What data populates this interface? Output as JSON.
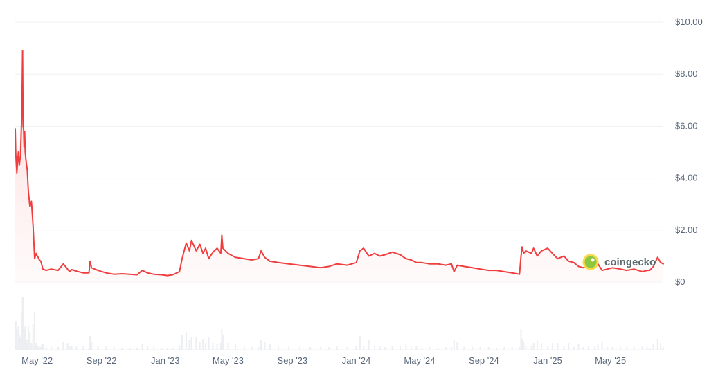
{
  "chart_data": {
    "type": "area",
    "title": "",
    "xlabel": "",
    "ylabel": "",
    "y_ticks": [
      "$10.00",
      "$8.00",
      "$6.00",
      "$4.00",
      "$2.00",
      "$0"
    ],
    "y_tick_values": [
      10,
      8,
      6,
      4,
      2,
      0
    ],
    "ylim": [
      0,
      10
    ],
    "x_ticks": [
      "May '22",
      "Sep '22",
      "Jan '23",
      "May '23",
      "Sep '23",
      "Jan '24",
      "May '24",
      "Sep '24",
      "Jan '25",
      "May '25"
    ],
    "x_tick_dates": [
      "2022-05-01",
      "2022-09-01",
      "2023-01-01",
      "2023-05-01",
      "2023-09-01",
      "2024-01-01",
      "2024-05-01",
      "2024-09-01",
      "2025-01-01",
      "2025-05-01"
    ],
    "xlim": [
      "2022-03-20",
      "2025-08-10"
    ],
    "grid": "horizontal",
    "legend": "none",
    "line_color": "#f03e3e",
    "fill_color": "#fde4e4",
    "grid_color": "#eef0f3",
    "volume_color": "#eceef1",
    "watermark": "coingecko",
    "series": [
      {
        "dates": [
          "2022-03-20",
          "2022-03-21",
          "2022-03-23",
          "2022-03-26",
          "2022-03-28",
          "2022-03-30",
          "2022-04-01",
          "2022-04-02",
          "2022-04-03",
          "2022-04-04",
          "2022-04-05",
          "2022-04-06",
          "2022-04-07",
          "2022-04-08",
          "2022-04-09",
          "2022-04-10",
          "2022-04-12",
          "2022-04-14",
          "2022-04-17",
          "2022-04-20",
          "2022-04-23",
          "2022-04-26",
          "2022-04-29",
          "2022-05-01",
          "2022-05-03",
          "2022-05-05",
          "2022-05-08",
          "2022-05-10",
          "2022-05-12",
          "2022-05-18",
          "2022-05-28",
          "2022-06-10",
          "2022-06-20",
          "2022-06-28",
          "2022-07-02",
          "2022-07-06",
          "2022-07-15",
          "2022-07-28",
          "2022-08-08",
          "2022-08-10",
          "2022-08-13",
          "2022-08-25",
          "2022-09-10",
          "2022-09-25",
          "2022-10-10",
          "2022-10-25",
          "2022-11-08",
          "2022-11-18",
          "2022-11-28",
          "2022-12-10",
          "2022-12-25",
          "2023-01-05",
          "2023-01-15",
          "2023-01-28",
          "2023-02-02",
          "2023-02-10",
          "2023-02-16",
          "2023-02-20",
          "2023-03-01",
          "2023-03-08",
          "2023-03-14",
          "2023-03-19",
          "2023-03-25",
          "2023-04-02",
          "2023-04-10",
          "2023-04-17",
          "2023-04-19",
          "2023-04-21",
          "2023-05-01",
          "2023-05-15",
          "2023-06-01",
          "2023-06-15",
          "2023-06-28",
          "2023-07-03",
          "2023-07-10",
          "2023-07-20",
          "2023-08-05",
          "2023-08-25",
          "2023-09-15",
          "2023-10-05",
          "2023-10-25",
          "2023-11-10",
          "2023-11-25",
          "2023-12-15",
          "2024-01-01",
          "2024-01-08",
          "2024-01-15",
          "2024-01-25",
          "2024-02-05",
          "2024-02-15",
          "2024-02-25",
          "2024-03-10",
          "2024-03-25",
          "2024-04-05",
          "2024-04-15",
          "2024-04-25",
          "2024-05-05",
          "2024-05-20",
          "2024-06-05",
          "2024-06-20",
          "2024-07-01",
          "2024-07-06",
          "2024-07-12",
          "2024-07-25",
          "2024-08-10",
          "2024-08-25",
          "2024-09-10",
          "2024-09-25",
          "2024-10-10",
          "2024-10-25",
          "2024-11-08",
          "2024-11-11",
          "2024-11-13",
          "2024-11-16",
          "2024-11-20",
          "2024-12-01",
          "2024-12-05",
          "2024-12-12",
          "2024-12-20",
          "2025-01-01",
          "2025-01-10",
          "2025-01-20",
          "2025-02-01",
          "2025-02-10",
          "2025-02-20",
          "2025-03-01",
          "2025-03-10",
          "2025-03-20",
          "2025-04-01",
          "2025-04-07",
          "2025-04-15",
          "2025-04-25",
          "2025-05-05",
          "2025-05-20",
          "2025-06-01",
          "2025-06-15",
          "2025-07-01",
          "2025-07-10",
          "2025-07-15",
          "2025-07-22",
          "2025-07-30",
          "2025-08-05",
          "2025-08-10"
        ],
        "values": [
          5.9,
          4.9,
          4.2,
          5.0,
          4.5,
          4.9,
          6.2,
          7.0,
          8.9,
          6.0,
          5.9,
          5.2,
          5.8,
          5.0,
          4.8,
          4.6,
          4.3,
          3.5,
          2.9,
          3.1,
          2.2,
          0.9,
          1.1,
          1.0,
          0.95,
          0.85,
          0.8,
          0.65,
          0.5,
          0.45,
          0.5,
          0.45,
          0.7,
          0.5,
          0.4,
          0.48,
          0.42,
          0.35,
          0.35,
          0.8,
          0.55,
          0.45,
          0.35,
          0.3,
          0.32,
          0.3,
          0.28,
          0.45,
          0.35,
          0.3,
          0.28,
          0.25,
          0.28,
          0.4,
          0.9,
          1.5,
          1.2,
          1.6,
          1.2,
          1.45,
          1.1,
          1.3,
          0.9,
          1.15,
          1.3,
          1.1,
          1.8,
          1.3,
          1.1,
          0.95,
          0.9,
          0.85,
          0.9,
          1.2,
          0.95,
          0.8,
          0.75,
          0.7,
          0.65,
          0.6,
          0.55,
          0.6,
          0.7,
          0.65,
          0.75,
          1.2,
          1.3,
          1.0,
          1.1,
          1.0,
          1.05,
          1.15,
          1.05,
          0.9,
          0.85,
          0.75,
          0.75,
          0.7,
          0.7,
          0.65,
          0.7,
          0.4,
          0.65,
          0.6,
          0.55,
          0.5,
          0.45,
          0.45,
          0.4,
          0.35,
          0.3,
          1.0,
          1.35,
          1.1,
          1.2,
          1.1,
          1.3,
          1.0,
          1.2,
          1.3,
          1.1,
          0.9,
          1.0,
          0.8,
          0.75,
          0.6,
          0.55,
          0.65,
          0.55,
          0.7,
          0.45,
          0.5,
          0.55,
          0.5,
          0.45,
          0.5,
          0.4,
          0.45,
          0.45,
          0.6,
          0.95,
          0.75,
          0.7
        ]
      }
    ]
  }
}
